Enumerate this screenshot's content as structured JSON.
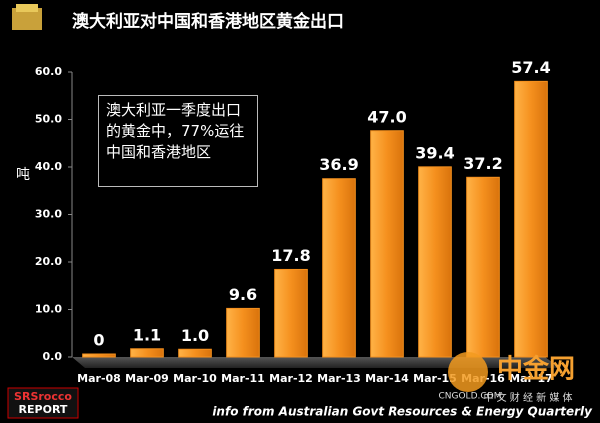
{
  "chart_data": {
    "type": "bar",
    "title": "澳大利亚对中国和香港地区黄金出口",
    "y_label": "吨",
    "annotation": "澳大利亚一季度出口的黄金中，77%运往中国和香港地区",
    "source": "info from Australian Govt Resources & Energy Quarterly",
    "logo_lines": [
      "SRSrocco",
      "REPORT"
    ],
    "watermark": {
      "name": "中金网",
      "site": "CNGOLD.COM",
      "slogan": "中 文 财 经 新 媒 体"
    },
    "categories": [
      "Mar-08",
      "Mar-09",
      "Mar-10",
      "Mar-11",
      "Mar-12",
      "Mar-13",
      "Mar-14",
      "Mar-15",
      "Mar-16",
      "Mar-17"
    ],
    "values": [
      0,
      1.1,
      1.0,
      9.6,
      17.8,
      36.9,
      47.0,
      39.4,
      37.2,
      57.4
    ],
    "value_labels": [
      "0",
      "1.1",
      "1.0",
      "9.6",
      "17.8",
      "36.9",
      "47.0",
      "39.4",
      "37.2",
      "57.4"
    ],
    "color": "#f5901e",
    "ylim": [
      0,
      60
    ],
    "yticks": [
      {
        "value": 0,
        "label": "0.0"
      },
      {
        "value": 10,
        "label": "10.0"
      },
      {
        "value": 20,
        "label": "20.0"
      },
      {
        "value": 30,
        "label": "30.0"
      },
      {
        "value": 40,
        "label": "40.0"
      },
      {
        "value": 50,
        "label": "50.0"
      },
      {
        "value": 60,
        "label": "60.0"
      }
    ],
    "grid": false
  }
}
